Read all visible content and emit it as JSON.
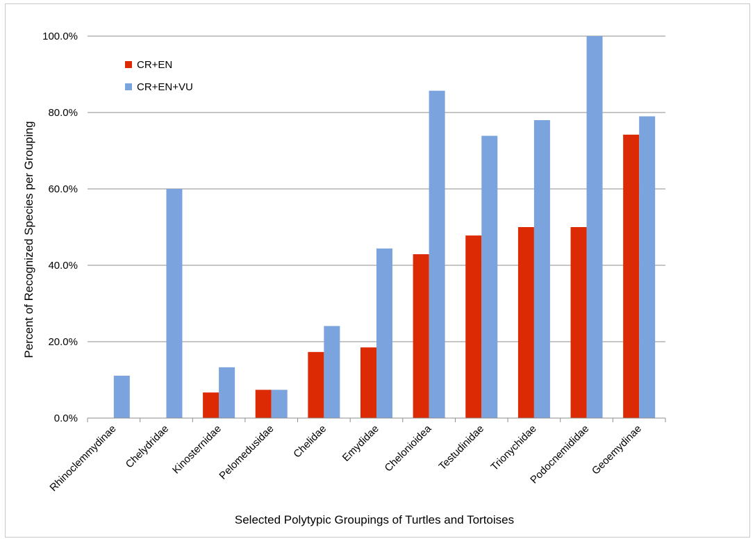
{
  "chart_data": {
    "type": "bar",
    "xlabel": "Selected Polytypic Groupings of Turtles and Tortoises",
    "ylabel": "Percent of Recognized Species per Grouping",
    "ylim": [
      0,
      100
    ],
    "yticks": [
      "0.0%",
      "20.0%",
      "40.0%",
      "60.0%",
      "80.0%",
      "100.0%"
    ],
    "grid": true,
    "legend_position": "top-left",
    "categories": [
      "Rhinoclemmydinae",
      "Chelydridae",
      "Kinosternidae",
      "Pelomedusidae",
      "Chelidae",
      "Emydidae",
      "Chelonioidea",
      "Testudinidae",
      "Trionychidae",
      "Podocnemididae",
      "Geoemydinae"
    ],
    "series": [
      {
        "name": "CR+EN",
        "color": "#dc2a05",
        "values": [
          0,
          0,
          6.7,
          7.4,
          17.3,
          18.5,
          42.9,
          47.8,
          50.0,
          50.0,
          74.2
        ]
      },
      {
        "name": "CR+EN+VU",
        "color": "#7ba3dd",
        "values": [
          11.1,
          60.0,
          13.3,
          7.4,
          24.1,
          44.4,
          85.7,
          73.9,
          78.0,
          100.0,
          79.0
        ]
      }
    ]
  }
}
